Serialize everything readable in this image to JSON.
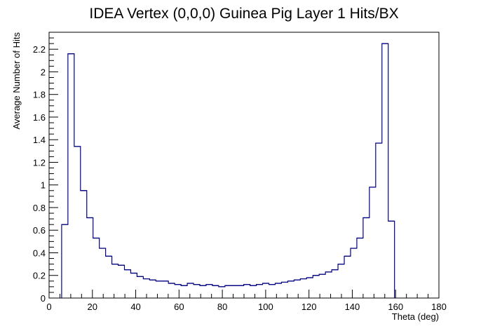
{
  "chart_data": {
    "type": "histogram",
    "title": "IDEA Vertex (0,0,0) Guinea Pig Layer 1 Hits/BX",
    "xlabel": "Theta (deg)",
    "ylabel": "Average Number of Hits",
    "xlim": [
      0,
      180
    ],
    "ylim": [
      0,
      2.35
    ],
    "x_ticks": [
      "0",
      "20",
      "40",
      "60",
      "80",
      "100",
      "120",
      "140",
      "160",
      "180"
    ],
    "y_ticks": [
      "0",
      "0.2",
      "0.4",
      "0.6",
      "0.8",
      "1",
      "1.2",
      "1.4",
      "1.6",
      "1.8",
      "2",
      "2.2"
    ],
    "bin_width": 2.9,
    "bin_start": 5.8,
    "values": [
      0.65,
      2.16,
      1.34,
      0.95,
      0.71,
      0.53,
      0.44,
      0.37,
      0.3,
      0.29,
      0.25,
      0.22,
      0.19,
      0.17,
      0.16,
      0.15,
      0.15,
      0.13,
      0.12,
      0.11,
      0.13,
      0.12,
      0.11,
      0.12,
      0.11,
      0.1,
      0.11,
      0.11,
      0.11,
      0.12,
      0.11,
      0.12,
      0.13,
      0.12,
      0.13,
      0.14,
      0.15,
      0.16,
      0.17,
      0.18,
      0.2,
      0.21,
      0.23,
      0.25,
      0.3,
      0.37,
      0.44,
      0.53,
      0.71,
      0.98,
      1.37,
      2.25,
      0.68
    ],
    "line_color": "#000080",
    "grid": false
  }
}
